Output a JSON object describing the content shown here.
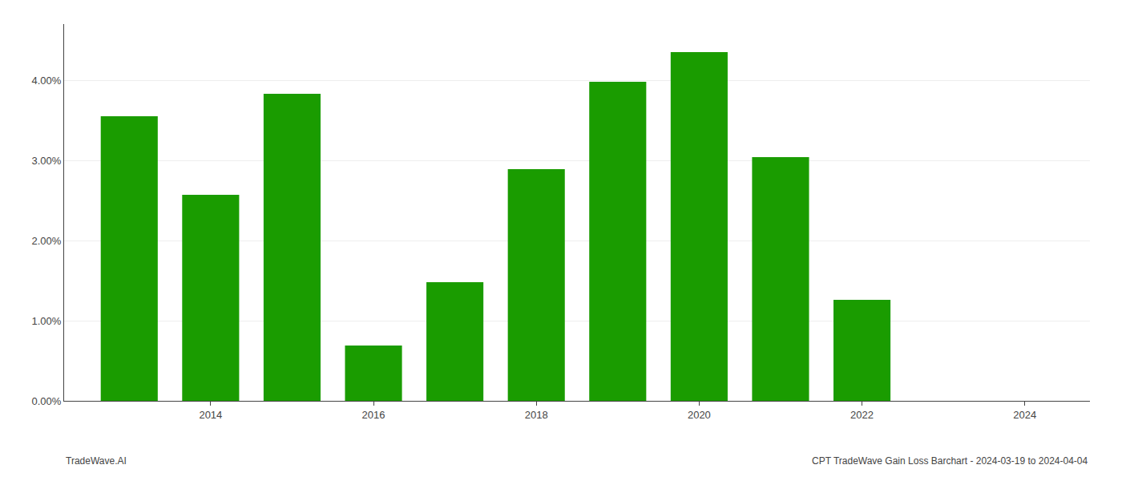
{
  "chart_data": {
    "type": "bar",
    "x": [
      2013,
      2014,
      2015,
      2016,
      2017,
      2018,
      2019,
      2020,
      2021,
      2022
    ],
    "values": [
      0.0355,
      0.0257,
      0.0383,
      0.0069,
      0.0148,
      0.0289,
      0.0398,
      0.0435,
      0.0304,
      0.0126
    ],
    "color": "#1a9c00",
    "xlim": [
      2012.2,
      2024.8
    ],
    "xticks": [
      2014,
      2016,
      2018,
      2020,
      2022,
      2024
    ],
    "ylim": [
      0,
      0.047
    ],
    "yticks": [
      {
        "value": 0.0,
        "label": "0.00%"
      },
      {
        "value": 0.01,
        "label": "1.00%"
      },
      {
        "value": 0.02,
        "label": "2.00%"
      },
      {
        "value": 0.03,
        "label": "3.00%"
      },
      {
        "value": 0.04,
        "label": "4.00%"
      }
    ],
    "grid": true,
    "annotations": [
      "TradeWave.AI",
      "CPT TradeWave Gain Loss Barchart - 2024-03-19 to 2024-04-04"
    ]
  }
}
